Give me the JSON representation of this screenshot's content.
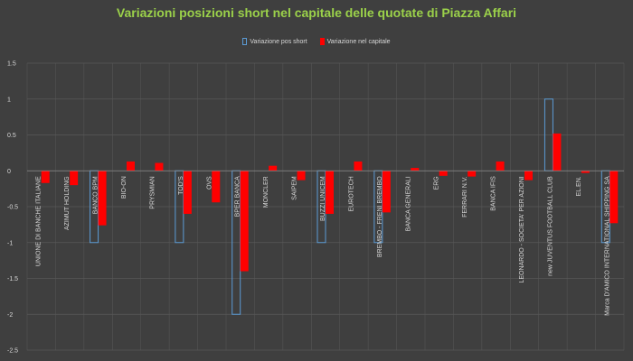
{
  "chart_data": {
    "type": "bar",
    "title": "Variazioni posizioni short nel capitale delle quotate di Piazza Affari",
    "categories": [
      "UNIONE DI BANCHE ITALIANE",
      "AZIMUT HOLDING",
      "BANCO BPM",
      "BIO-ON",
      "PRYSMIAN",
      "TOD'S",
      "OVS",
      "BPER BANCA",
      "MONCLER",
      "SAIPEM",
      "BUZZI UNICEM",
      "EUROTECH",
      "BREMBO - FRENI BREMBO",
      "BANCA GENERALI",
      "ERG",
      "FERRARI N.V.",
      "BANCA IFIS",
      "LEONARDO - SOCIETA' PER AZIONI",
      "new JUVENTUS FOOTBALL CLUB",
      "EL.EN.",
      "Marca D'AMICO INTERNATIONAL SHIPPING SA"
    ],
    "series": [
      {
        "name": "Variazione pos short",
        "style": "outline",
        "color": "#5b9bd5",
        "values": [
          0,
          0,
          -1,
          0,
          0,
          -1,
          0,
          -2,
          0,
          0,
          -1,
          0,
          -1,
          0,
          0,
          0,
          0,
          0,
          1,
          0,
          -1
        ]
      },
      {
        "name": "Variazione nel capitale",
        "style": "fill",
        "color": "#ff0000",
        "values": [
          -0.17,
          -0.2,
          -0.76,
          0.13,
          0.11,
          -0.6,
          -0.44,
          -1.4,
          0.07,
          -0.13,
          -0.6,
          0.13,
          -0.58,
          0.04,
          -0.07,
          -0.08,
          0.13,
          -0.13,
          0.52,
          -0.03,
          -0.73
        ]
      }
    ],
    "ylim": [
      -2.5,
      1.5
    ],
    "yticks": [
      -2.5,
      -2,
      -1.5,
      -1,
      -0.5,
      0,
      0.5,
      1,
      1.5
    ],
    "grid": true,
    "legend": "top",
    "colors": {
      "background": "#3f3f3f",
      "title": "#9bd14a",
      "grid": "#595959",
      "text": "#d8d8d8"
    }
  }
}
